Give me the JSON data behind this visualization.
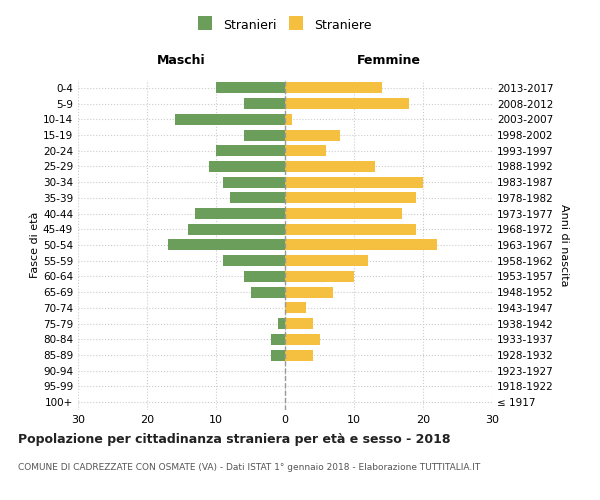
{
  "age_groups": [
    "100+",
    "95-99",
    "90-94",
    "85-89",
    "80-84",
    "75-79",
    "70-74",
    "65-69",
    "60-64",
    "55-59",
    "50-54",
    "45-49",
    "40-44",
    "35-39",
    "30-34",
    "25-29",
    "20-24",
    "15-19",
    "10-14",
    "5-9",
    "0-4"
  ],
  "birth_years": [
    "≤ 1917",
    "1918-1922",
    "1923-1927",
    "1928-1932",
    "1933-1937",
    "1938-1942",
    "1943-1947",
    "1948-1952",
    "1953-1957",
    "1958-1962",
    "1963-1967",
    "1968-1972",
    "1973-1977",
    "1978-1982",
    "1983-1987",
    "1988-1992",
    "1993-1997",
    "1998-2002",
    "2003-2007",
    "2008-2012",
    "2013-2017"
  ],
  "males": [
    0,
    0,
    0,
    2,
    2,
    1,
    0,
    5,
    6,
    9,
    17,
    14,
    13,
    8,
    9,
    11,
    10,
    6,
    16,
    6,
    10
  ],
  "females": [
    0,
    0,
    0,
    4,
    5,
    4,
    3,
    7,
    10,
    12,
    22,
    19,
    17,
    19,
    20,
    13,
    6,
    8,
    1,
    18,
    14
  ],
  "male_color": "#6a9e5a",
  "female_color": "#f5c040",
  "background_color": "#ffffff",
  "grid_color": "#cccccc",
  "center_line_color": "#999999",
  "xlim": 30,
  "title": "Popolazione per cittadinanza straniera per età e sesso - 2018",
  "subtitle": "COMUNE DI CADREZZATE CON OSMATE (VA) - Dati ISTAT 1° gennaio 2018 - Elaborazione TUTTITALIA.IT",
  "legend_male": "Stranieri",
  "legend_female": "Straniere",
  "xlabel_left": "Maschi",
  "xlabel_right": "Femmine",
  "ylabel_left": "Fasce di età",
  "ylabel_right": "Anni di nascita"
}
